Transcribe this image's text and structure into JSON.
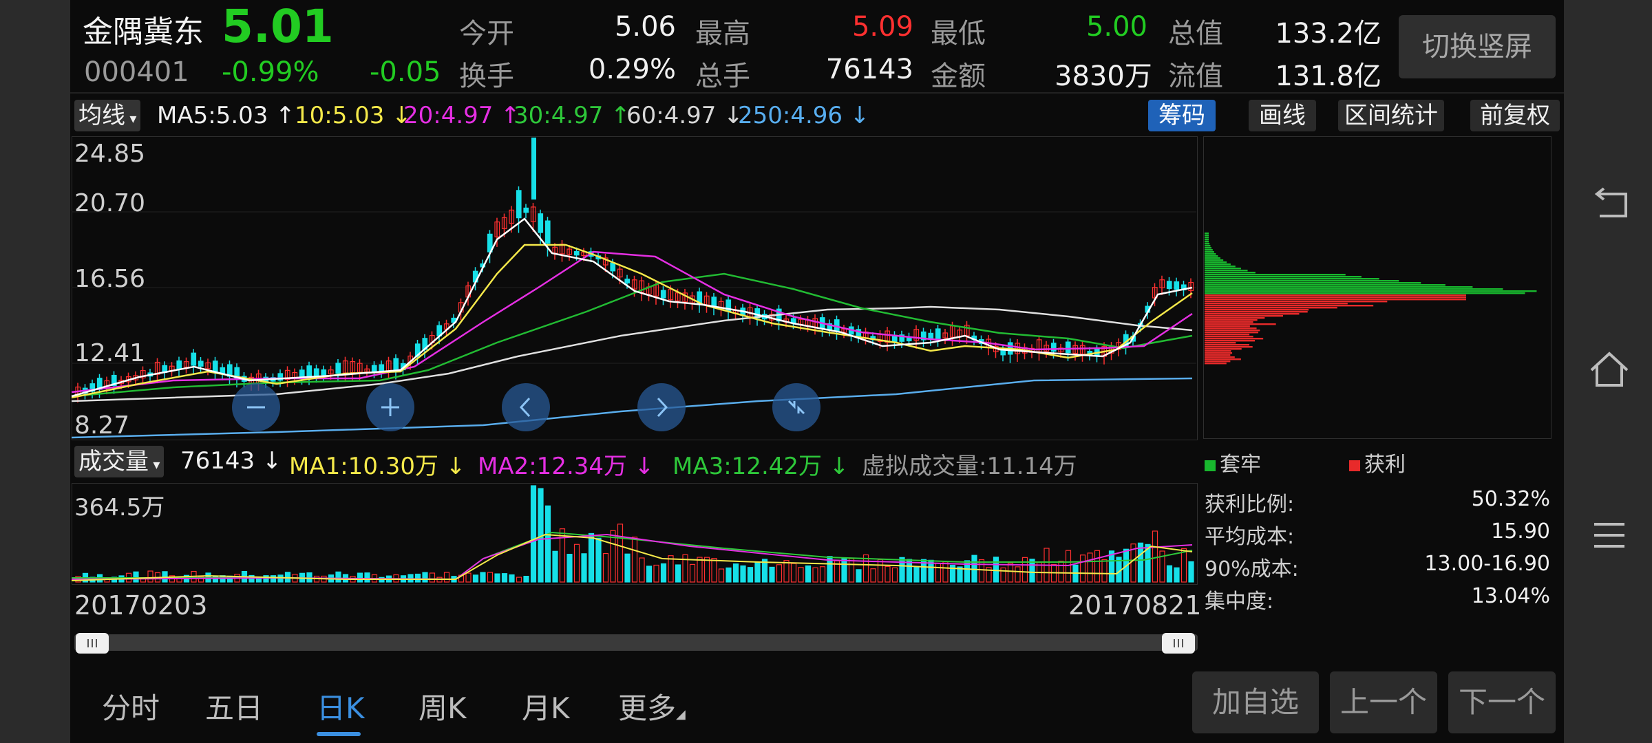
{
  "stock": {
    "name": "金隅冀东",
    "price": "5.01",
    "code": "000401",
    "change_pct": "-0.99%",
    "change": "-0.05"
  },
  "quote": {
    "open_label": "今开",
    "open": "5.06",
    "high_label": "最高",
    "high": "5.09",
    "low_label": "最低",
    "low": "5.00",
    "mcap_label": "总值",
    "mcap": "133.2亿",
    "turnover_label": "换手",
    "turnover": "0.29%",
    "vol_label": "总手",
    "vol": "76143",
    "amount_label": "金额",
    "amount": "3830万",
    "float_label": "流值",
    "float": "131.8亿"
  },
  "switch_button": "切换竖屏",
  "ma_bar": {
    "dropdown": "均线",
    "ma5": "MA5:5.03 ↑",
    "ma10": "10:5.03 ↓",
    "ma20": "20:4.97 ↑",
    "ma30": "30:4.97 ↑",
    "ma60": "60:4.97 ↓",
    "ma250": "250:4.96 ↓"
  },
  "tools": {
    "chips": "筹码",
    "draw": "画线",
    "range": "区间统计",
    "adjust": "前复权"
  },
  "kline_axis": [
    "24.85",
    "20.70",
    "16.56",
    "12.41",
    "8.27"
  ],
  "volume_bar": {
    "dropdown": "成交量",
    "vol": "76143 ↓",
    "ma1": "MA1:10.30万 ↓",
    "ma2": "MA2:12.34万 ↓",
    "ma3": "MA3:12.42万 ↓",
    "virtual": "虚拟成交量:11.14万"
  },
  "volume_axis": "364.5万",
  "dates": {
    "start": "20170203",
    "end": "20170821"
  },
  "chip_panel": {
    "legend_trapped": "套牢",
    "legend_profit": "获利",
    "rows": [
      {
        "label": "获利比例:",
        "value": "50.32%"
      },
      {
        "label": "平均成本:",
        "value": "15.90"
      },
      {
        "label": "90%成本:",
        "value": "13.00-16.90"
      },
      {
        "label": "集中度:",
        "value": "13.04%"
      }
    ]
  },
  "nav_tabs": [
    "分时",
    "五日",
    "日K",
    "周K",
    "月K",
    "更多"
  ],
  "bottom_buttons": {
    "add": "加自选",
    "prev": "上一个",
    "next": "下一个"
  },
  "colors": {
    "up": "#ff3030",
    "down": "#22cc22",
    "accent": "#1f62b8",
    "cyan": "#16e0e8"
  }
}
